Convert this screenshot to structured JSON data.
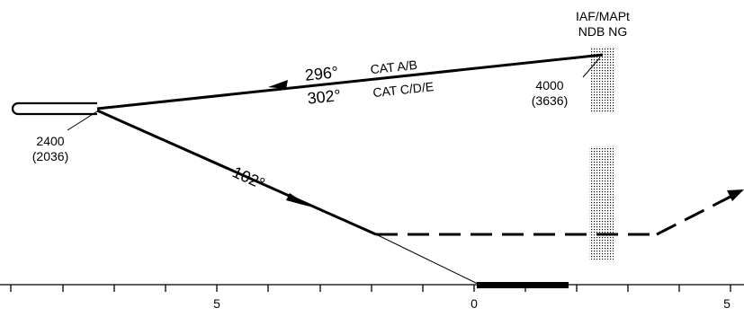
{
  "fix": {
    "name_line1": "IAF/MAPt",
    "name_line2": "NDB NG",
    "altitude": "4000",
    "altitude_height": "(3636)"
  },
  "outbound": {
    "course_cat_ab_deg": "296°",
    "cat_ab": "CAT A/B",
    "course_cat_cde_deg": "302°",
    "cat_cde": "CAT C/D/E"
  },
  "turn_point": {
    "altitude": "2400",
    "altitude_height": "(2036)"
  },
  "inbound": {
    "course": "102°"
  },
  "distance_scale": {
    "labels": [
      "5",
      "0",
      "5"
    ]
  },
  "colors": {
    "ink": "#000000",
    "stipple": "#000000",
    "background": "#ffffff"
  }
}
